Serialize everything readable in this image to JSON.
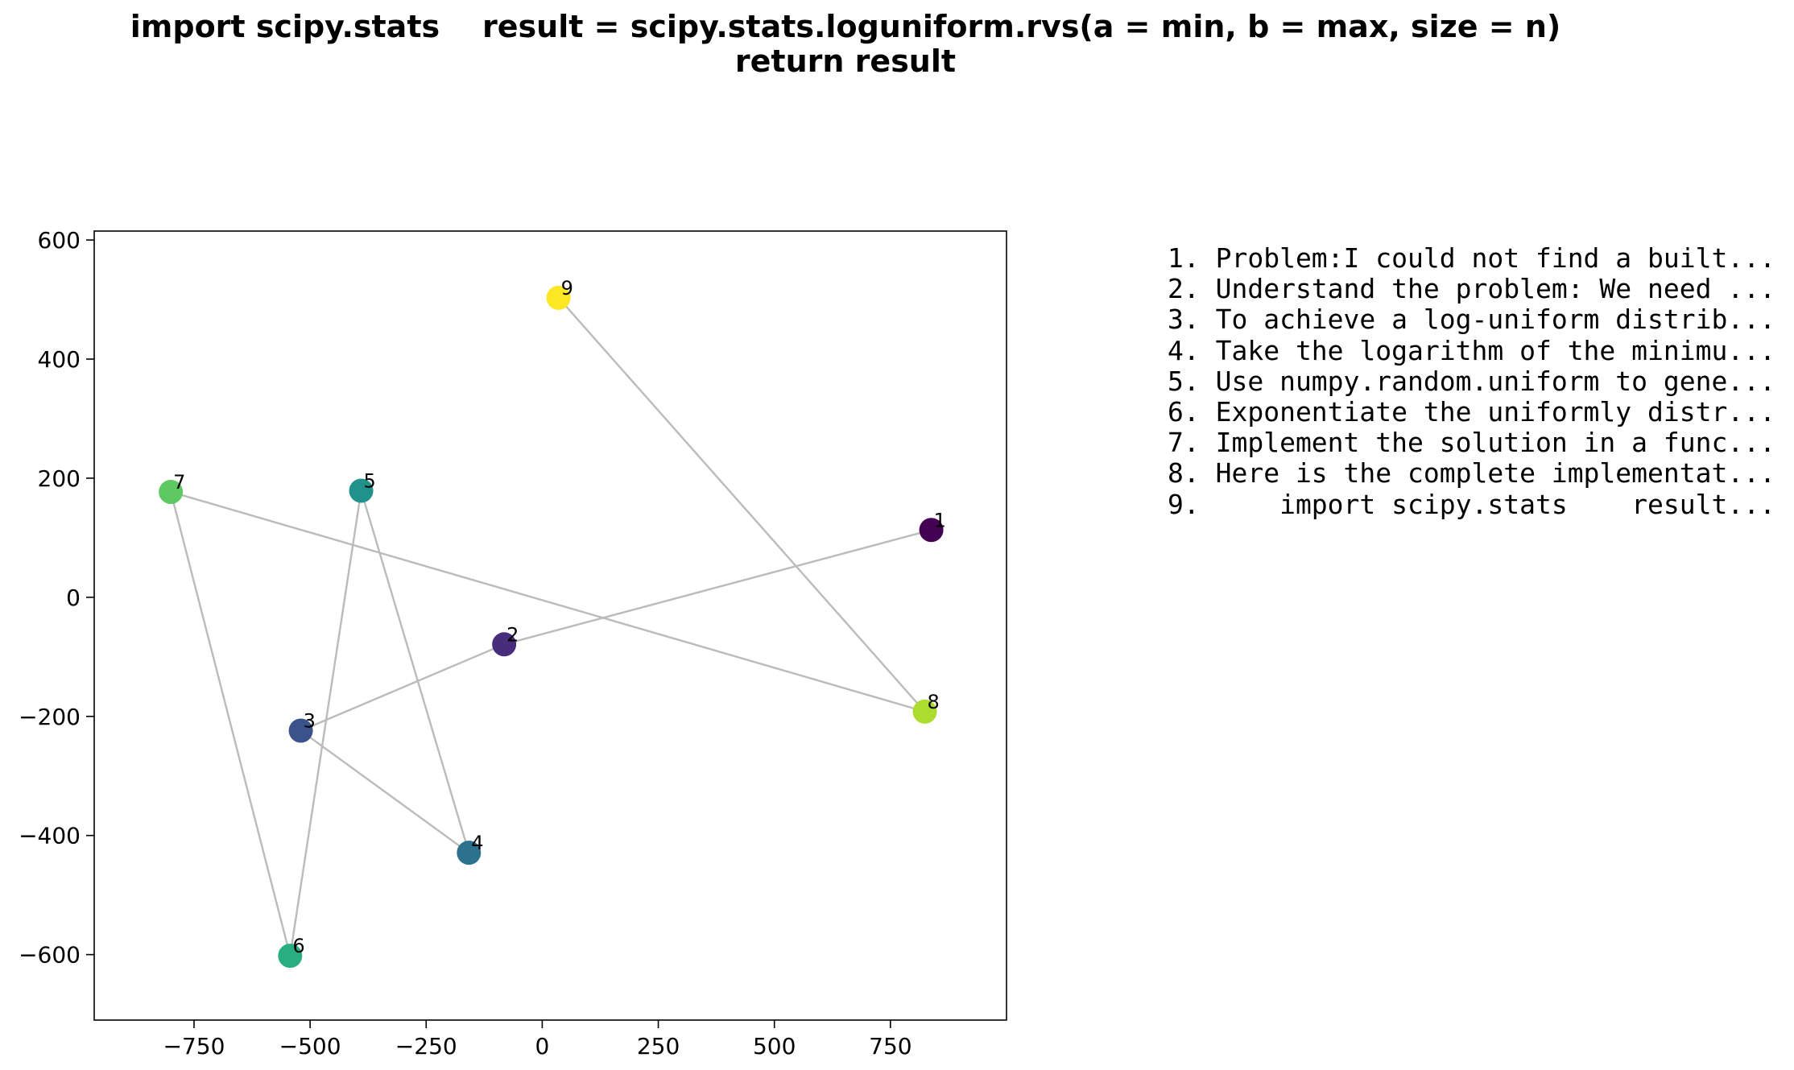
{
  "chart_data": {
    "type": "scatter",
    "title_lines": [
      "import scipy.stats    result = scipy.stats.loguniform.rvs(a = min, b = max, size = n)",
      "return result"
    ],
    "xlabel": "",
    "ylabel": "",
    "xlim": [
      -965,
      1000
    ],
    "ylim": [
      -710,
      615
    ],
    "xticks": [
      -750,
      -500,
      -250,
      0,
      250,
      500,
      750
    ],
    "yticks": [
      -600,
      -400,
      -200,
      0,
      200,
      400,
      600
    ],
    "grid": false,
    "colormap": "viridis",
    "connector_color": "#bbbbbb",
    "points": [
      {
        "label": "1",
        "x": 838,
        "y": 113,
        "color": "#440154"
      },
      {
        "label": "2",
        "x": -82,
        "y": -79,
        "color": "#472d7b"
      },
      {
        "label": "3",
        "x": -520,
        "y": -224,
        "color": "#3b528b"
      },
      {
        "label": "4",
        "x": -158,
        "y": -429,
        "color": "#2c728e"
      },
      {
        "label": "5",
        "x": -390,
        "y": 179,
        "color": "#21918c"
      },
      {
        "label": "6",
        "x": -543,
        "y": -602,
        "color": "#28ae80"
      },
      {
        "label": "7",
        "x": -800,
        "y": 177,
        "color": "#5ec962"
      },
      {
        "label": "8",
        "x": 824,
        "y": -192,
        "color": "#addc30"
      },
      {
        "label": "9",
        "x": 35,
        "y": 503,
        "color": "#fde725"
      }
    ],
    "legend_position": "right",
    "legend_entries": [
      "1. Problem:I could not find a built...",
      "2. Understand the problem: We need ...",
      "3. To achieve a log-uniform distrib...",
      "4. Take the logarithm of the minimu...",
      "5. Use numpy.random.uniform to gene...",
      "6. Exponentiate the uniformly distr...",
      "7. Implement the solution in a func...",
      "8. Here is the complete implementat...",
      "9.     import scipy.stats    result..."
    ]
  }
}
